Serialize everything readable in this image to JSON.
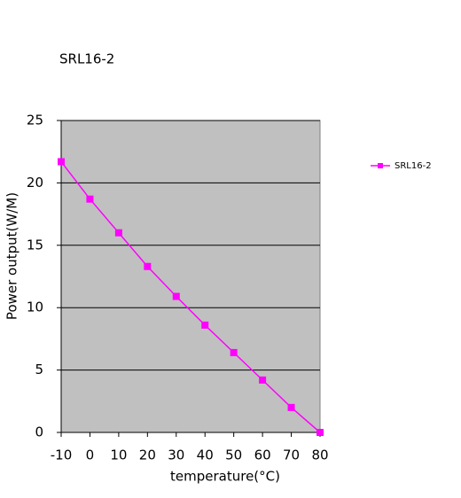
{
  "chart_data": {
    "type": "line",
    "title": "SRL16-2",
    "x_label": "temperature(°C)",
    "y_label": "Power output(W/M)",
    "x": [
      -10,
      0,
      10,
      20,
      30,
      40,
      50,
      60,
      70,
      80
    ],
    "series": [
      {
        "name": "SRL16-2",
        "color": "#ff00ff",
        "values": [
          21.7,
          18.7,
          16.0,
          13.3,
          10.9,
          8.6,
          6.4,
          4.2,
          2.0,
          0
        ]
      }
    ],
    "xlim": [
      -10,
      80
    ],
    "xticks": [
      -10,
      0,
      10,
      20,
      30,
      40,
      50,
      60,
      70,
      80
    ],
    "ylim": [
      0,
      25
    ],
    "yticks": [
      0,
      5,
      10,
      15,
      20,
      25
    ],
    "grid": true,
    "legend": "right",
    "background": "#c0c0c0"
  }
}
